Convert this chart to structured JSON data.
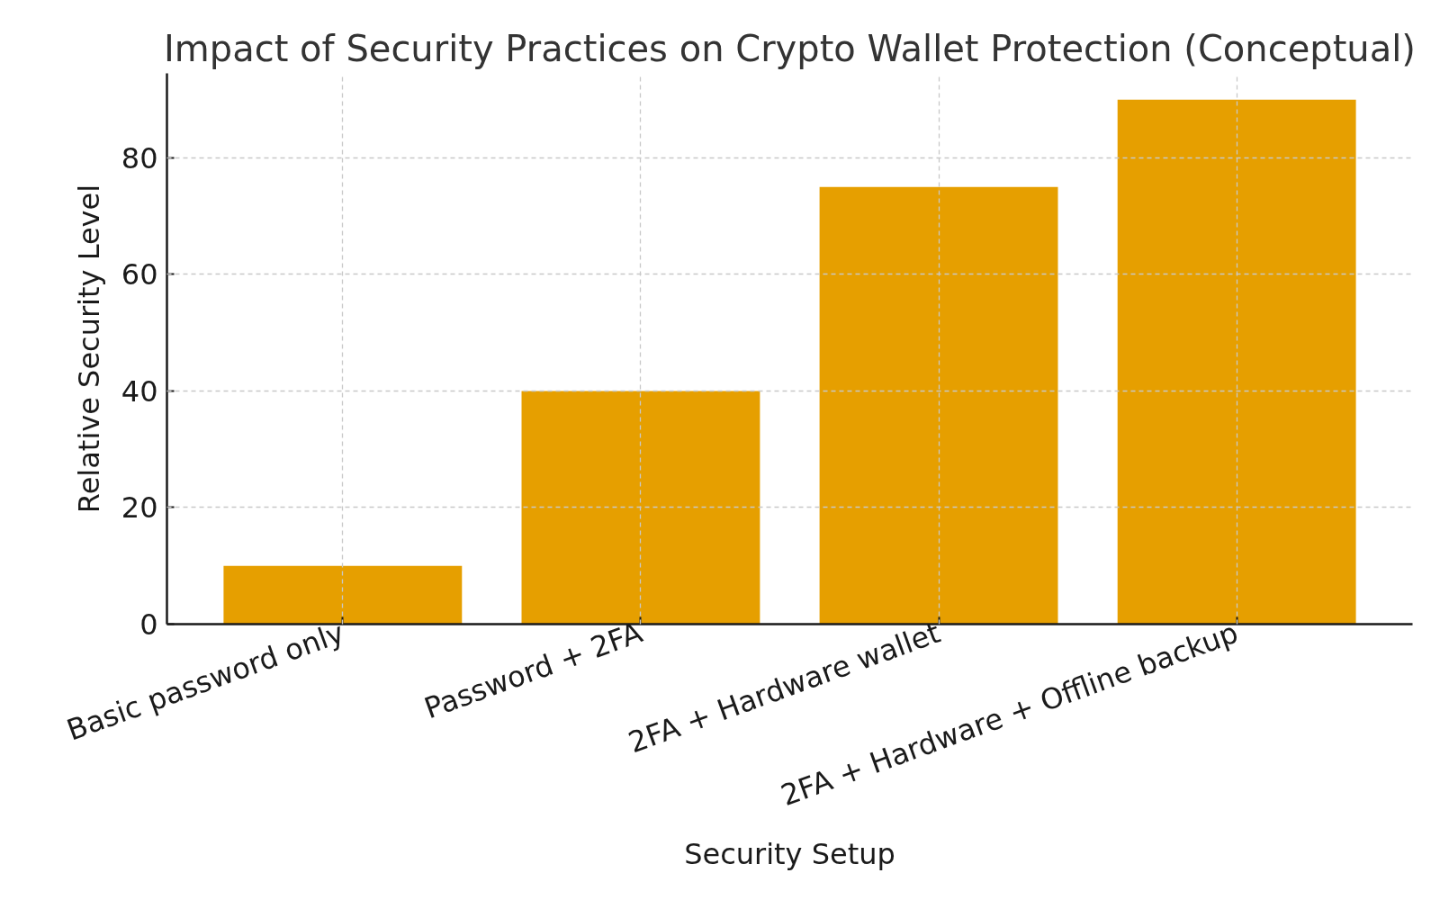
{
  "chart_data": {
    "type": "bar",
    "title": "Impact of Security Practices on Crypto Wallet Protection (Conceptual)",
    "xlabel": "Security Setup",
    "ylabel": "Relative Security Level",
    "categories": [
      "Basic password only",
      "Password + 2FA",
      "2FA + Hardware wallet",
      "2FA + Hardware + Offline backup"
    ],
    "values": [
      10,
      40,
      75,
      90
    ],
    "color": "#e69f00",
    "ylim": [
      0,
      94.5
    ],
    "yticks": [
      0,
      20,
      40,
      60,
      80
    ],
    "grid": true
  }
}
